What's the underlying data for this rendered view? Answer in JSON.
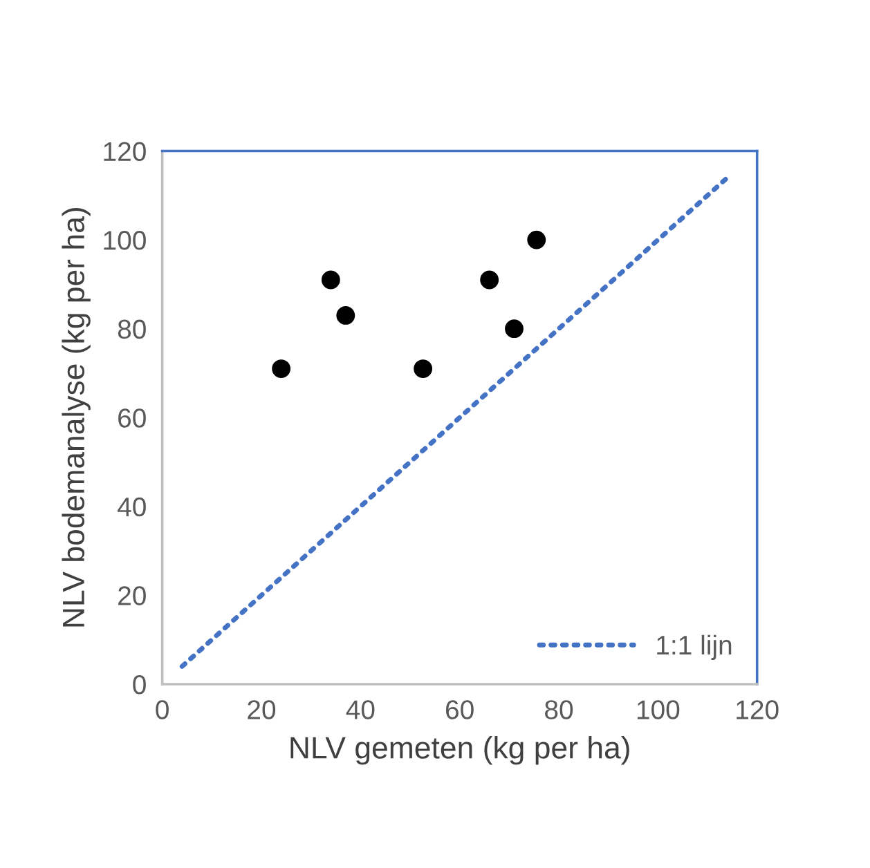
{
  "chart_data": {
    "type": "scatter",
    "xlabel": "NLV gemeten (kg per ha)",
    "ylabel": "NLV bodemanalyse (kg per ha)",
    "xlim": [
      0,
      120
    ],
    "xticks": [
      0,
      20,
      40,
      60,
      80,
      100,
      120
    ],
    "ylim": [
      0,
      120
    ],
    "yticks": [
      0,
      20,
      40,
      60,
      80,
      100,
      120
    ],
    "grid": false,
    "legend": "bottom right",
    "marker": "circle",
    "series": [
      {
        "color": "#000000",
        "x": [
          24,
          34,
          37,
          52.6,
          66,
          71,
          75.5
        ],
        "values": [
          71,
          91,
          83,
          71,
          91,
          80,
          100
        ]
      },
      {
        "type": "line",
        "name": "1:1 lijn",
        "color": "#4472c4",
        "line_style": "dotted",
        "marker": "none",
        "x": [
          4,
          114
        ],
        "values": [
          4,
          114
        ]
      }
    ]
  }
}
